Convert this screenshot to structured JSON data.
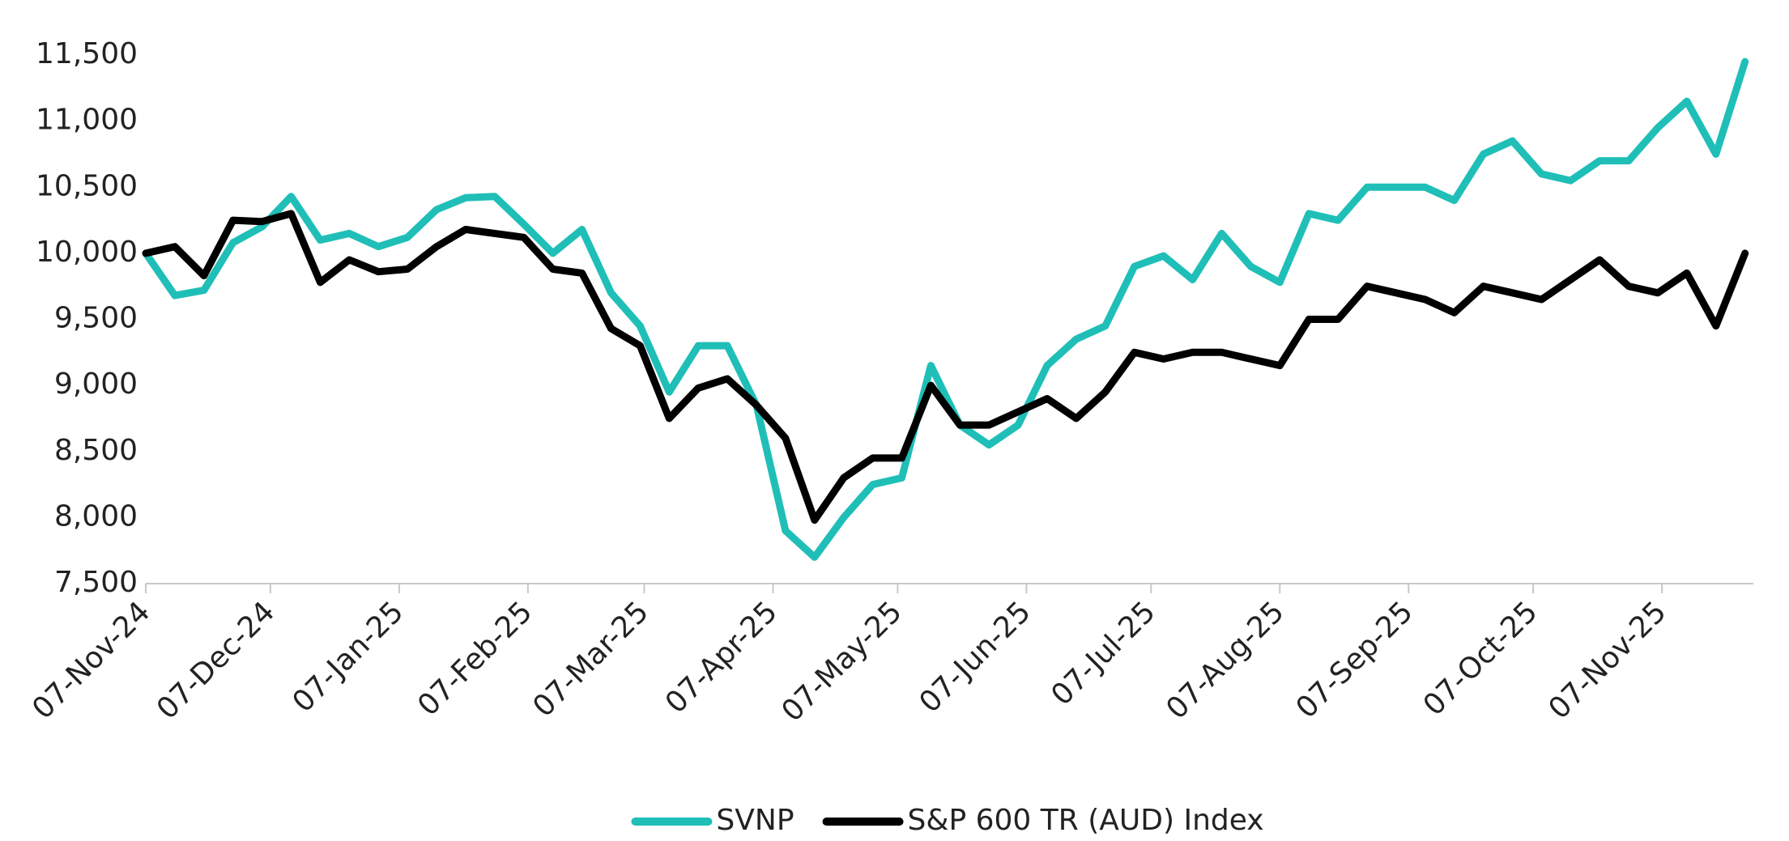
{
  "chart_data": {
    "type": "line",
    "x": [
      "2024-11-07",
      "2024-11-14",
      "2024-11-21",
      "2024-11-28",
      "2024-12-05",
      "2024-12-12",
      "2024-12-19",
      "2024-12-26",
      "2025-01-02",
      "2025-01-09",
      "2025-01-16",
      "2025-01-23",
      "2025-01-30",
      "2025-02-06",
      "2025-02-13",
      "2025-02-20",
      "2025-02-27",
      "2025-03-06",
      "2025-03-13",
      "2025-03-20",
      "2025-03-27",
      "2025-04-03",
      "2025-04-10",
      "2025-04-17",
      "2025-04-24",
      "2025-05-01",
      "2025-05-08",
      "2025-05-15",
      "2025-05-22",
      "2025-05-29",
      "2025-06-05",
      "2025-06-12",
      "2025-06-19",
      "2025-06-26",
      "2025-07-03",
      "2025-07-10",
      "2025-07-17",
      "2025-07-24",
      "2025-07-31",
      "2025-08-07",
      "2025-08-14",
      "2025-08-21",
      "2025-08-28",
      "2025-09-04",
      "2025-09-11",
      "2025-09-18",
      "2025-09-25",
      "2025-10-02",
      "2025-10-09",
      "2025-10-16",
      "2025-10-23",
      "2025-10-30",
      "2025-11-06",
      "2025-11-13",
      "2025-11-20",
      "2025-11-27"
    ],
    "series": [
      {
        "name": "SVNP",
        "color": "#1fbfb8",
        "values": [
          10000,
          9680,
          9720,
          10080,
          10200,
          10430,
          10100,
          10150,
          10050,
          10120,
          10330,
          10420,
          10430,
          10220,
          10000,
          10180,
          9700,
          9450,
          8950,
          9300,
          9300,
          8850,
          7900,
          7700,
          8000,
          8250,
          8300,
          9150,
          8700,
          8550,
          8700,
          9150,
          9350,
          9450,
          9900,
          9980,
          9800,
          10150,
          9900,
          9780,
          10300,
          10250,
          10500,
          10500,
          10500,
          10400,
          10750,
          10850,
          10600,
          10550,
          10700,
          10700,
          10950,
          11150,
          10750,
          11450
        ]
      },
      {
        "name": "S&P 600 TR (AUD) Index",
        "color": "#000000",
        "values": [
          10000,
          10050,
          9830,
          10250,
          10240,
          10300,
          9780,
          9950,
          9860,
          9880,
          10050,
          10180,
          10150,
          10120,
          9880,
          9850,
          9430,
          9300,
          8750,
          8980,
          9050,
          8850,
          8600,
          7980,
          8300,
          8450,
          8450,
          9000,
          8700,
          8700,
          8800,
          8900,
          8750,
          8950,
          9250,
          9200,
          9250,
          9250,
          9200,
          9150,
          9500,
          9500,
          9750,
          9700,
          9650,
          9550,
          9750,
          9700,
          9650,
          9800,
          9950,
          9750,
          9700,
          9850,
          9450,
          10000
        ]
      }
    ],
    "xlim": [
      "2024-11-07",
      "2025-11-29"
    ],
    "xticks": [
      {
        "value": "2024-11-07",
        "label": "07-Nov-24"
      },
      {
        "value": "2024-12-07",
        "label": "07-Dec-24"
      },
      {
        "value": "2025-01-07",
        "label": "07-Jan-25"
      },
      {
        "value": "2025-02-07",
        "label": "07-Feb-25"
      },
      {
        "value": "2025-03-07",
        "label": "07-Mar-25"
      },
      {
        "value": "2025-04-07",
        "label": "07-Apr-25"
      },
      {
        "value": "2025-05-07",
        "label": "07-May-25"
      },
      {
        "value": "2025-06-07",
        "label": "07-Jun-25"
      },
      {
        "value": "2025-07-07",
        "label": "07-Jul-25"
      },
      {
        "value": "2025-08-07",
        "label": "07-Aug-25"
      },
      {
        "value": "2025-09-07",
        "label": "07-Sep-25"
      },
      {
        "value": "2025-10-07",
        "label": "07-Oct-25"
      },
      {
        "value": "2025-11-07",
        "label": "07-Nov-25"
      }
    ],
    "ylim": [
      7500,
      11500
    ],
    "yticks": [
      {
        "value": 7500,
        "label": "7,500"
      },
      {
        "value": 8000,
        "label": "8,000"
      },
      {
        "value": 8500,
        "label": "8,500"
      },
      {
        "value": 9000,
        "label": "9,000"
      },
      {
        "value": 9500,
        "label": "9,500"
      },
      {
        "value": 10000,
        "label": "10,000"
      },
      {
        "value": 10500,
        "label": "10,500"
      },
      {
        "value": 11000,
        "label": "11,000"
      },
      {
        "value": 11500,
        "label": "11,500"
      }
    ],
    "grid": false,
    "legend": "bottom"
  }
}
